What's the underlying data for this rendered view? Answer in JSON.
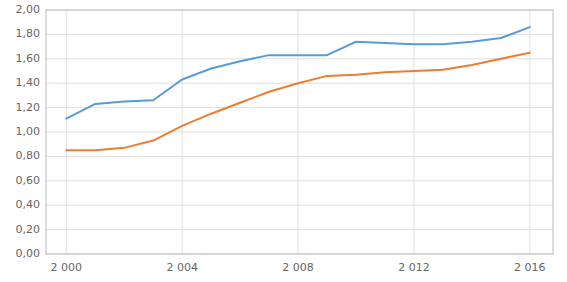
{
  "chart_data": {
    "type": "line",
    "x": [
      2000,
      2001,
      2002,
      2003,
      2004,
      2005,
      2006,
      2007,
      2008,
      2009,
      2010,
      2011,
      2012,
      2013,
      2014,
      2015,
      2016
    ],
    "series": [
      {
        "color": "#5B9BD5",
        "values": [
          1.11,
          1.23,
          1.25,
          1.26,
          1.43,
          1.52,
          1.58,
          1.63,
          1.63,
          1.63,
          1.74,
          1.73,
          1.72,
          1.72,
          1.74,
          1.77,
          1.86
        ]
      },
      {
        "color": "#ED7D31",
        "values": [
          0.85,
          0.85,
          0.87,
          0.93,
          1.05,
          1.15,
          1.24,
          1.33,
          1.4,
          1.46,
          1.47,
          1.49,
          1.5,
          1.51,
          1.55,
          1.6,
          1.65
        ]
      }
    ],
    "xlim": [
      1999.3,
      2016.8
    ],
    "ylim": [
      0.0,
      2.0
    ],
    "xticks": [
      {
        "value": 2000,
        "label": "2 000"
      },
      {
        "value": 2004,
        "label": "2 004"
      },
      {
        "value": 2008,
        "label": "2 008"
      },
      {
        "value": 2012,
        "label": "2 012"
      },
      {
        "value": 2016,
        "label": "2 016"
      }
    ],
    "yticks": [
      {
        "value": 0.0,
        "label": "0,00"
      },
      {
        "value": 0.2,
        "label": "0,20"
      },
      {
        "value": 0.4,
        "label": "0,40"
      },
      {
        "value": 0.6,
        "label": "0,60"
      },
      {
        "value": 0.8,
        "label": "0,80"
      },
      {
        "value": 1.0,
        "label": "1,00"
      },
      {
        "value": 1.2,
        "label": "1,20"
      },
      {
        "value": 1.4,
        "label": "1,40"
      },
      {
        "value": 1.6,
        "label": "1,60"
      },
      {
        "value": 1.8,
        "label": "1,80"
      },
      {
        "value": 2.0,
        "label": "2,00"
      }
    ],
    "grid": true
  }
}
